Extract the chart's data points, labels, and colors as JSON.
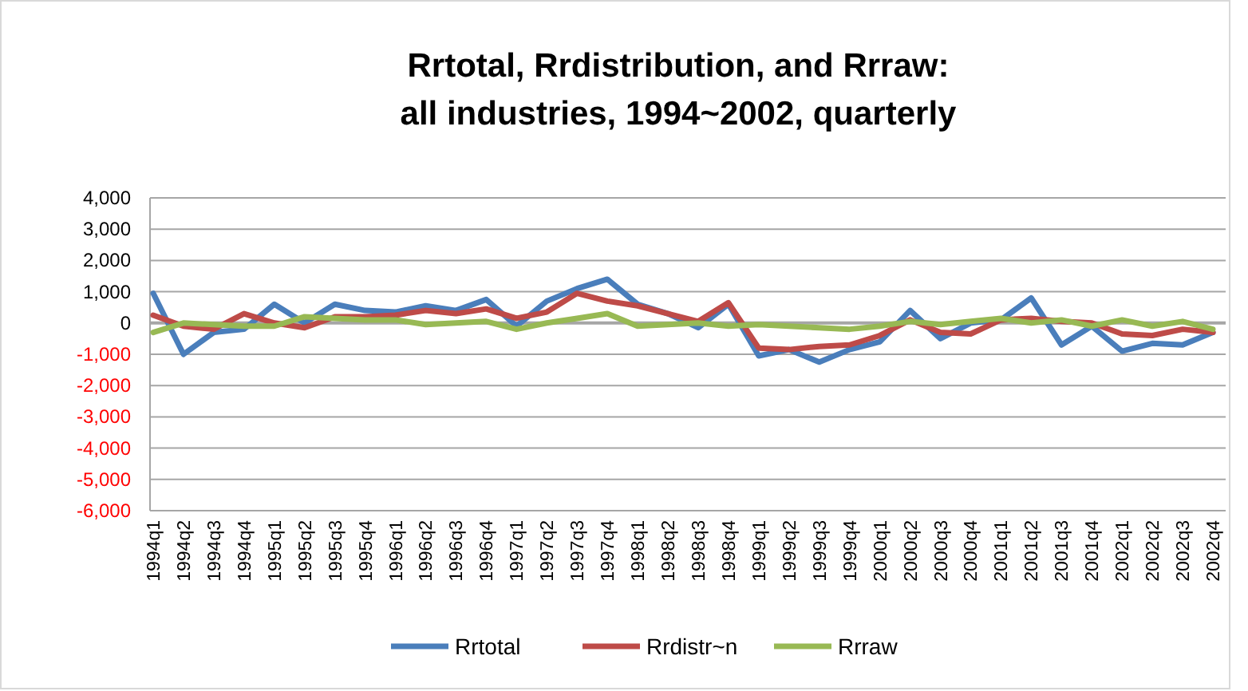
{
  "chart_data": {
    "type": "line",
    "title": "Rrtotal, Rrdistribution, and Rrraw:\nall industries, 1994~2002, quarterly",
    "categories": [
      "1994q1",
      "1994q2",
      "1994q3",
      "1994q4",
      "1995q1",
      "1995q2",
      "1995q3",
      "1995q4",
      "1996q1",
      "1996q2",
      "1996q3",
      "1996q4",
      "1997q1",
      "1997q2",
      "1997q3",
      "1997q4",
      "1998q1",
      "1998q2",
      "1998q3",
      "1998q4",
      "1999q1",
      "1999q2",
      "1999q3",
      "1999q4",
      "2000q1",
      "2000q2",
      "2000q3",
      "2000q4",
      "2001q1",
      "2001q2",
      "2001q3",
      "2001q4",
      "2002q1",
      "2002q2",
      "2002q3",
      "2002q4"
    ],
    "series": [
      {
        "name": "Rrtotal",
        "color": "#4a7ebb",
        "values": [
          950,
          -1000,
          -300,
          -200,
          600,
          0,
          600,
          400,
          350,
          550,
          400,
          750,
          -100,
          700,
          1100,
          1400,
          600,
          300,
          -150,
          600,
          -1050,
          -850,
          -1250,
          -850,
          -600,
          400,
          -500,
          0,
          100,
          800,
          -700,
          -100,
          -900,
          -650,
          -700,
          -300
        ]
      },
      {
        "name": "Rrdistr~n",
        "color": "#be4b48",
        "values": [
          250,
          -100,
          -200,
          300,
          0,
          -150,
          200,
          200,
          250,
          400,
          300,
          450,
          150,
          350,
          950,
          700,
          550,
          300,
          50,
          650,
          -800,
          -850,
          -750,
          -700,
          -400,
          100,
          -300,
          -350,
          100,
          150,
          50,
          0,
          -350,
          -400,
          -200,
          -300
        ]
      },
      {
        "name": "Rrraw",
        "color": "#98b954",
        "values": [
          -300,
          0,
          -50,
          -100,
          -100,
          200,
          150,
          100,
          100,
          -50,
          0,
          50,
          -200,
          0,
          150,
          300,
          -100,
          -50,
          0,
          -100,
          -50,
          -100,
          -150,
          -200,
          -100,
          50,
          -50,
          50,
          150,
          0,
          100,
          -100,
          100,
          -100,
          50,
          -200
        ]
      }
    ],
    "ylim": [
      -6000,
      4000
    ],
    "yticks": [
      {
        "value": -6000,
        "label": "-6,000"
      },
      {
        "value": -5000,
        "label": "-5,000"
      },
      {
        "value": -4000,
        "label": "-4,000"
      },
      {
        "value": -3000,
        "label": "-3,000"
      },
      {
        "value": -2000,
        "label": "-2,000"
      },
      {
        "value": -1000,
        "label": "-1,000"
      },
      0,
      {
        "value": 1000,
        "label": "1,000"
      },
      {
        "value": 2000,
        "label": "2,000"
      },
      {
        "value": 3000,
        "label": "3,000"
      },
      {
        "value": 4000,
        "label": "4,000"
      }
    ],
    "grid": "y",
    "legend": "bottom",
    "marker": "none",
    "line_style": "solid"
  }
}
